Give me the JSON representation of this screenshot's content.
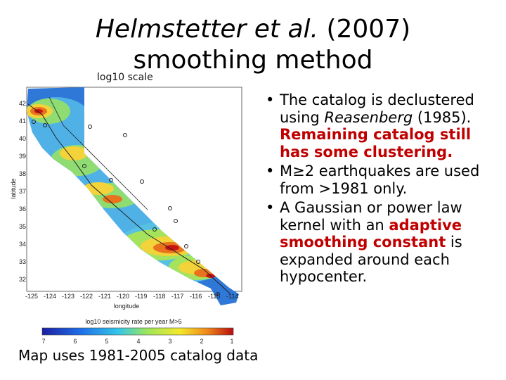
{
  "title": {
    "italic": "Helmstetter et al.",
    "rest": " (2007) smoothing method"
  },
  "map": {
    "scale_label": "log10 scale",
    "x_axis_label": "longitude",
    "y_axis_label": "latitude",
    "x_ticks": [
      "-125",
      "-124",
      "-123",
      "-122",
      "-121",
      "-120",
      "-119",
      "-118",
      "-117",
      "-116",
      "-115",
      "-114"
    ],
    "y_ticks": [
      "42",
      "41",
      "40",
      "39",
      "38",
      "37",
      "36",
      "35",
      "34",
      "33",
      "32"
    ],
    "colorbar_label": "log10 seismicity rate per year M>5",
    "colorbar_ticks": [
      "7",
      "6",
      "5",
      "4",
      "3",
      "2",
      "1"
    ]
  },
  "bullets": [
    {
      "parts": [
        "The catalog is declustered using ",
        "Reasenberg",
        " (1985). ",
        "Remaining catalog still has some clustering."
      ]
    },
    {
      "text": "M≥2 earthquakes are used from >1981 only."
    },
    {
      "parts": [
        "A Gaussian or power law kernel with an ",
        "adaptive smoothing constant",
        " is expanded around each hypocenter."
      ]
    }
  ],
  "caption": "Map uses 1981-2005 catalog data",
  "colors": {
    "accent_red": "#c00000"
  }
}
